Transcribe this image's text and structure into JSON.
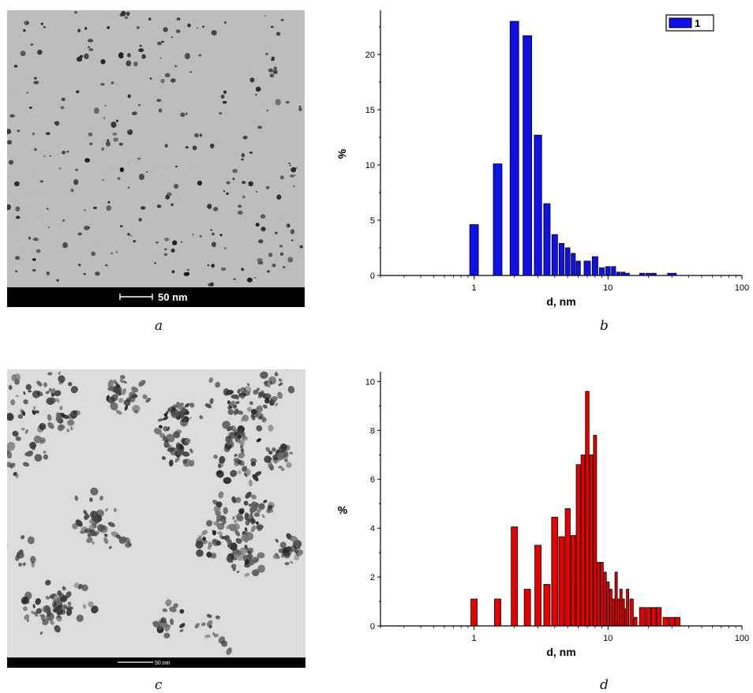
{
  "panels": {
    "a": {
      "caption": "a",
      "scalebar_label": "50 nm"
    },
    "b": {
      "caption": "b"
    },
    "c": {
      "caption": "c",
      "scalebar_label": "50 nm"
    },
    "d": {
      "caption": "d"
    }
  },
  "colors": {
    "blue_bars": "#1010e8",
    "red_bars": "#e80000",
    "tem_background_a": "#bdbdbd",
    "tem_background_c": "#dcdcdc"
  },
  "chart_data": [
    {
      "id": "b",
      "type": "bar",
      "xscale": "log",
      "xlim": [
        0.2,
        100
      ],
      "ylim": [
        0,
        24
      ],
      "xticks": [
        1,
        10,
        100
      ],
      "xticklabels": [
        "1",
        "10",
        "100"
      ],
      "yticks": [
        0,
        5,
        10,
        15,
        20
      ],
      "yticklabels": [
        "0",
        "5",
        "10",
        "15",
        "20"
      ],
      "xlabel": "d, nm",
      "ylabel": "%",
      "legend": {
        "entries": [
          "1"
        ],
        "placement": "top-right"
      },
      "series": [
        {
          "name": "1",
          "x": [
            1.0,
            1.5,
            2.0,
            2.5,
            3.0,
            3.5,
            4.0,
            4.5,
            5.0,
            5.5,
            6.0,
            7.0,
            8.0,
            9.0,
            10.0,
            11.0,
            12.0,
            13.0,
            14.0,
            18.0,
            20.0,
            22.0,
            30.0
          ],
          "values": [
            4.6,
            10.1,
            23.0,
            21.7,
            12.7,
            6.5,
            3.7,
            2.9,
            2.5,
            2.0,
            1.3,
            1.3,
            1.7,
            0.7,
            0.8,
            0.8,
            0.3,
            0.3,
            0.2,
            0.2,
            0.2,
            0.2,
            0.2
          ]
        }
      ]
    },
    {
      "id": "d",
      "type": "bar",
      "xscale": "log",
      "xlim": [
        0.2,
        100
      ],
      "ylim": [
        0,
        10.4
      ],
      "xticks": [
        1,
        10,
        100
      ],
      "xticklabels": [
        "1",
        "10",
        "100"
      ],
      "yticks": [
        0,
        2,
        4,
        6,
        8,
        10
      ],
      "yticklabels": [
        "0",
        "2",
        "4",
        "6",
        "8",
        "10"
      ],
      "xlabel": "d, nm",
      "ylabel": "%",
      "series": [
        {
          "x": [
            1.0,
            1.5,
            2.0,
            2.5,
            3.0,
            3.5,
            4.0,
            4.5,
            5.0,
            5.5,
            6.0,
            6.5,
            7.0,
            7.5,
            8.0,
            8.5,
            9.0,
            9.5,
            10.0,
            10.5,
            11.0,
            11.5,
            12.0,
            12.5,
            13.0,
            13.5,
            14.0,
            15.0,
            16.0,
            18.0,
            20.0,
            22.0,
            24.0,
            27.0,
            30.0,
            33.0
          ],
          "values": [
            1.1,
            1.1,
            4.05,
            1.5,
            3.3,
            1.7,
            4.45,
            3.65,
            4.8,
            3.7,
            6.6,
            7.0,
            9.6,
            7.0,
            7.8,
            2.6,
            2.6,
            2.2,
            1.8,
            1.5,
            1.1,
            2.2,
            1.1,
            1.5,
            1.1,
            0.7,
            1.5,
            1.1,
            0.35,
            0.75,
            0.75,
            0.75,
            0.75,
            0.35,
            0.35,
            0.35
          ]
        }
      ]
    }
  ]
}
